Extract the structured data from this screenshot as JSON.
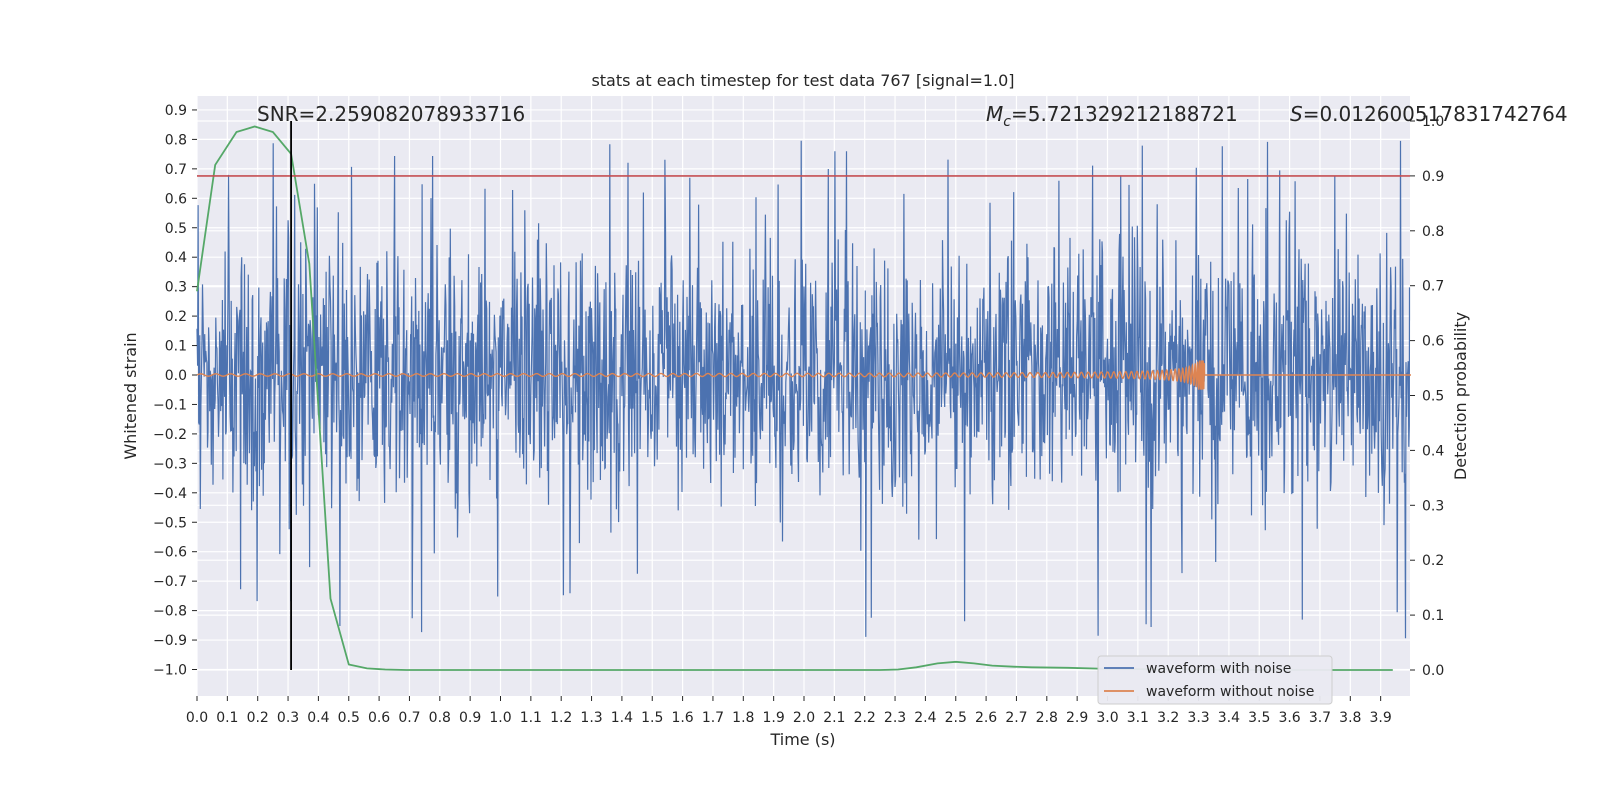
{
  "chart_data": {
    "type": "line",
    "title": "stats at each timestep for test data 767 [signal=1.0]",
    "xlabel": "Time (s)",
    "ylabel": "Whitened strain",
    "y2label": "Detection probability",
    "xlim": [
      0.0,
      4.0
    ],
    "ylim": [
      -1.09,
      0.95
    ],
    "y2lim": [
      -0.048,
      1.0
    ],
    "x_ticks": [
      "0.0",
      "0.1",
      "0.2",
      "0.3",
      "0.4",
      "0.5",
      "0.6",
      "0.7",
      "0.8",
      "0.9",
      "1.0",
      "1.1",
      "1.2",
      "1.3",
      "1.4",
      "1.5",
      "1.6",
      "1.7",
      "1.8",
      "1.9",
      "2.0",
      "2.1",
      "2.2",
      "2.3",
      "2.4",
      "2.5",
      "2.6",
      "2.7",
      "2.8",
      "2.9",
      "3.0",
      "3.1",
      "3.2",
      "3.3",
      "3.4",
      "3.5",
      "3.6",
      "3.7",
      "3.8",
      "3.9"
    ],
    "y_ticks": [
      "0.9",
      "0.8",
      "0.7",
      "0.6",
      "0.5",
      "0.4",
      "0.3",
      "0.2",
      "0.1",
      "0.0",
      "−0.1",
      "−0.2",
      "−0.3",
      "−0.4",
      "−0.5",
      "−0.6",
      "−0.7",
      "−0.8",
      "−0.9",
      "−1.0"
    ],
    "y2_ticks": [
      "1.0",
      "0.9",
      "0.8",
      "0.7",
      "0.6",
      "0.5",
      "0.4",
      "0.3",
      "0.2",
      "0.1",
      "0.0"
    ],
    "grid": true,
    "legend_position": "lower-right",
    "annotations": {
      "snr_label": "SNR=2.259082078933716",
      "mc_symbol": "M",
      "mc_sub": "c",
      "mc_value": "=5.721329212188721",
      "s_symbol": "S",
      "s_value": "=0.012600517831742764"
    },
    "series": [
      {
        "name": "waveform with noise",
        "color": "#4c72b0",
        "kind": "noise",
        "x_range": [
          0.0,
          4.0
        ],
        "amplitude_range": [
          -1.0,
          0.86
        ]
      },
      {
        "name": "waveform without noise",
        "color": "#dd8452",
        "kind": "chirp",
        "x_range": [
          0.0,
          3.32
        ],
        "merger_time": 3.32,
        "peak_amplitude": 0.05
      },
      {
        "color": "#55a868",
        "axis": "right",
        "x": [
          0.0,
          0.06,
          0.13,
          0.19,
          0.25,
          0.31,
          0.37,
          0.44,
          0.5,
          0.56,
          0.62,
          0.69,
          0.75,
          0.81,
          0.87,
          0.94,
          1.0,
          1.25,
          1.5,
          1.75,
          2.0,
          2.25,
          2.31,
          2.37,
          2.44,
          2.5,
          2.56,
          2.62,
          2.69,
          2.75,
          2.87,
          3.0,
          3.25,
          3.5,
          3.75,
          3.94
        ],
        "y": [
          0.69,
          0.92,
          0.98,
          0.99,
          0.98,
          0.94,
          0.74,
          0.13,
          0.01,
          0.003,
          0.001,
          0.0,
          0.0,
          0.0,
          0.0,
          0.0,
          0.0,
          0.0,
          0.0,
          0.0,
          0.0,
          0.0,
          0.001,
          0.005,
          0.012,
          0.015,
          0.012,
          0.008,
          0.006,
          0.005,
          0.004,
          0.002,
          0.001,
          0.0,
          0.0,
          0.0
        ]
      }
    ],
    "threshold": {
      "value": 0.9,
      "axis": "right",
      "color": "#c44e52"
    },
    "vline": {
      "x": 0.31,
      "color": "#000000"
    }
  }
}
